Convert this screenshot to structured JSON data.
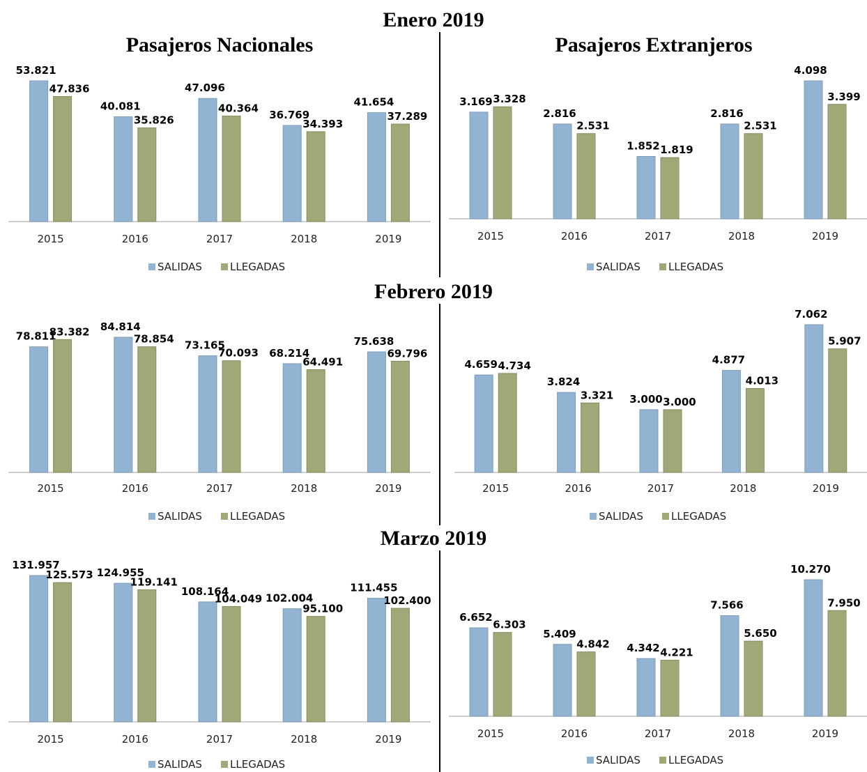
{
  "titles": {
    "months": [
      "Enero 2019",
      "Febrero 2019",
      "Marzo 2019"
    ],
    "nacionales": "Pasajeros Nacionales",
    "extranjeros": "Pasajeros Extranjeros"
  },
  "colors": {
    "salidas": "#93b3d3",
    "llegadas": "#a0a878",
    "salidas_edge": "#7d9cbd",
    "llegadas_edge": "#878e62",
    "axis": "#bfbfbf"
  },
  "legend": [
    "SALIDAS",
    "LLEGADAS"
  ],
  "chart_data": [
    {
      "type": "bar",
      "group": "Enero 2019 - Pasajeros Nacionales",
      "categories": [
        "2015",
        "2016",
        "2017",
        "2018",
        "2019"
      ],
      "series": [
        {
          "name": "SALIDAS",
          "values": [
            53821,
            40081,
            47096,
            36769,
            41654
          ],
          "labels": [
            "53.821",
            "40.081",
            "47.096",
            "36.769",
            "41.654"
          ]
        },
        {
          "name": "LLEGADAS",
          "values": [
            47836,
            35826,
            40364,
            34393,
            37289
          ],
          "labels": [
            "47.836",
            "35.826",
            "40.364",
            "34.393",
            "37.289"
          ]
        }
      ],
      "legend": "bottom",
      "grid": false
    },
    {
      "type": "bar",
      "group": "Enero 2019 - Pasajeros Extranjeros",
      "categories": [
        "2015",
        "2016",
        "2017",
        "2018",
        "2019"
      ],
      "series": [
        {
          "name": "SALIDAS",
          "values": [
            3169,
            2816,
            1852,
            2816,
            4098
          ],
          "labels": [
            "3.169",
            "2.816",
            "1.852",
            "2.816",
            "4.098"
          ]
        },
        {
          "name": "LLEGADAS",
          "values": [
            3328,
            2531,
            1819,
            2531,
            3399
          ],
          "labels": [
            "3.328",
            "2.531",
            "1.819",
            "2.531",
            "3.399"
          ]
        }
      ],
      "legend": "bottom",
      "grid": false
    },
    {
      "type": "bar",
      "group": "Febrero 2019 - Pasajeros Nacionales",
      "categories": [
        "2015",
        "2016",
        "2017",
        "2018",
        "2019"
      ],
      "series": [
        {
          "name": "SALIDAS",
          "values": [
            78811,
            84814,
            73165,
            68214,
            75638
          ],
          "labels": [
            "78.811",
            "84.814",
            "73.165",
            "68.214",
            "75.638"
          ]
        },
        {
          "name": "LLEGADAS",
          "values": [
            83382,
            78854,
            70093,
            64491,
            69796
          ],
          "labels": [
            "83.382",
            "78.854",
            "70.093",
            "64.491",
            "69.796"
          ]
        }
      ],
      "legend": "bottom",
      "grid": false
    },
    {
      "type": "bar",
      "group": "Febrero 2019 - Pasajeros Extranjeros",
      "categories": [
        "2015",
        "2016",
        "2017",
        "2018",
        "2019"
      ],
      "series": [
        {
          "name": "SALIDAS",
          "values": [
            4659,
            3824,
            3000,
            4877,
            7062
          ],
          "labels": [
            "4.659",
            "3.824",
            "3.000",
            "4.877",
            "7.062"
          ]
        },
        {
          "name": "LLEGADAS",
          "values": [
            4734,
            3321,
            3000,
            4013,
            5907
          ],
          "labels": [
            "4.734",
            "3.321",
            "3.000",
            "4.013",
            "5.907"
          ]
        }
      ],
      "legend": "bottom",
      "grid": false
    },
    {
      "type": "bar",
      "group": "Marzo 2019 - Pasajeros Nacionales",
      "categories": [
        "2015",
        "2016",
        "2017",
        "2018",
        "2019"
      ],
      "series": [
        {
          "name": "SALIDAS",
          "values": [
            131957,
            124955,
            108164,
            102004,
            111455
          ],
          "labels": [
            "131.957",
            "124.955",
            "108.164",
            "102.004",
            "111.455"
          ]
        },
        {
          "name": "LLEGADAS",
          "values": [
            125573,
            119141,
            104049,
            95100,
            102400
          ],
          "labels": [
            "125.573",
            "119.141",
            "104.049",
            "95.100",
            "102.400"
          ]
        }
      ],
      "legend": "bottom",
      "grid": false
    },
    {
      "type": "bar",
      "group": "Marzo 2019 - Pasajeros Extranjeros",
      "categories": [
        "2015",
        "2016",
        "2017",
        "2018",
        "2019"
      ],
      "series": [
        {
          "name": "SALIDAS",
          "values": [
            6652,
            5409,
            4342,
            7566,
            10270
          ],
          "labels": [
            "6.652",
            "5.409",
            "4.342",
            "7.566",
            "10.270"
          ]
        },
        {
          "name": "LLEGADAS",
          "values": [
            6303,
            4842,
            4221,
            5650,
            7950
          ],
          "labels": [
            "6.303",
            "4.842",
            "4.221",
            "5.650",
            "7.950"
          ]
        }
      ],
      "legend": "bottom",
      "grid": false
    }
  ]
}
